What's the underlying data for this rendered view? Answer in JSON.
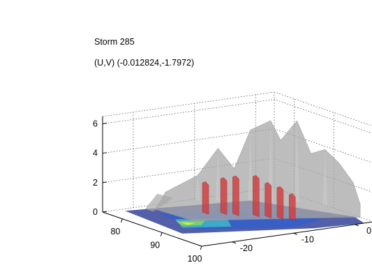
{
  "figure": {
    "title_lines": [
      "Storm 285",
      "(U,V) (-0.012824,-1.7972)"
    ]
  },
  "chart_data": {
    "type": "3d-surface",
    "title": "Storm 285",
    "subtitle": "(U,V) (-0.012824,-1.7972)",
    "xlabel": "",
    "ylabel": "",
    "zlabel": "",
    "axes": {
      "x": {
        "ticks": [
          80,
          90,
          100
        ],
        "range": [
          75,
          100
        ]
      },
      "y": {
        "ticks": [
          0,
          -10,
          -20
        ],
        "range": [
          -25,
          3
        ]
      },
      "z": {
        "ticks": [
          0,
          2,
          4,
          6
        ],
        "range": [
          0,
          6.5
        ]
      }
    },
    "grid": true,
    "view": "3D perspective, dotted box grid",
    "layers": [
      {
        "role": "outer isosurface",
        "color": "#a8a8a8",
        "opacity": 0.75
      },
      {
        "role": "inner isosurface",
        "color": "#d03b3b",
        "opacity": 0.8
      },
      {
        "role": "base slice",
        "colors": [
          "#1a2a8c",
          "#2e5fd0",
          "#3fb6c8",
          "#7fd36a",
          "#f0e04a"
        ]
      }
    ]
  }
}
